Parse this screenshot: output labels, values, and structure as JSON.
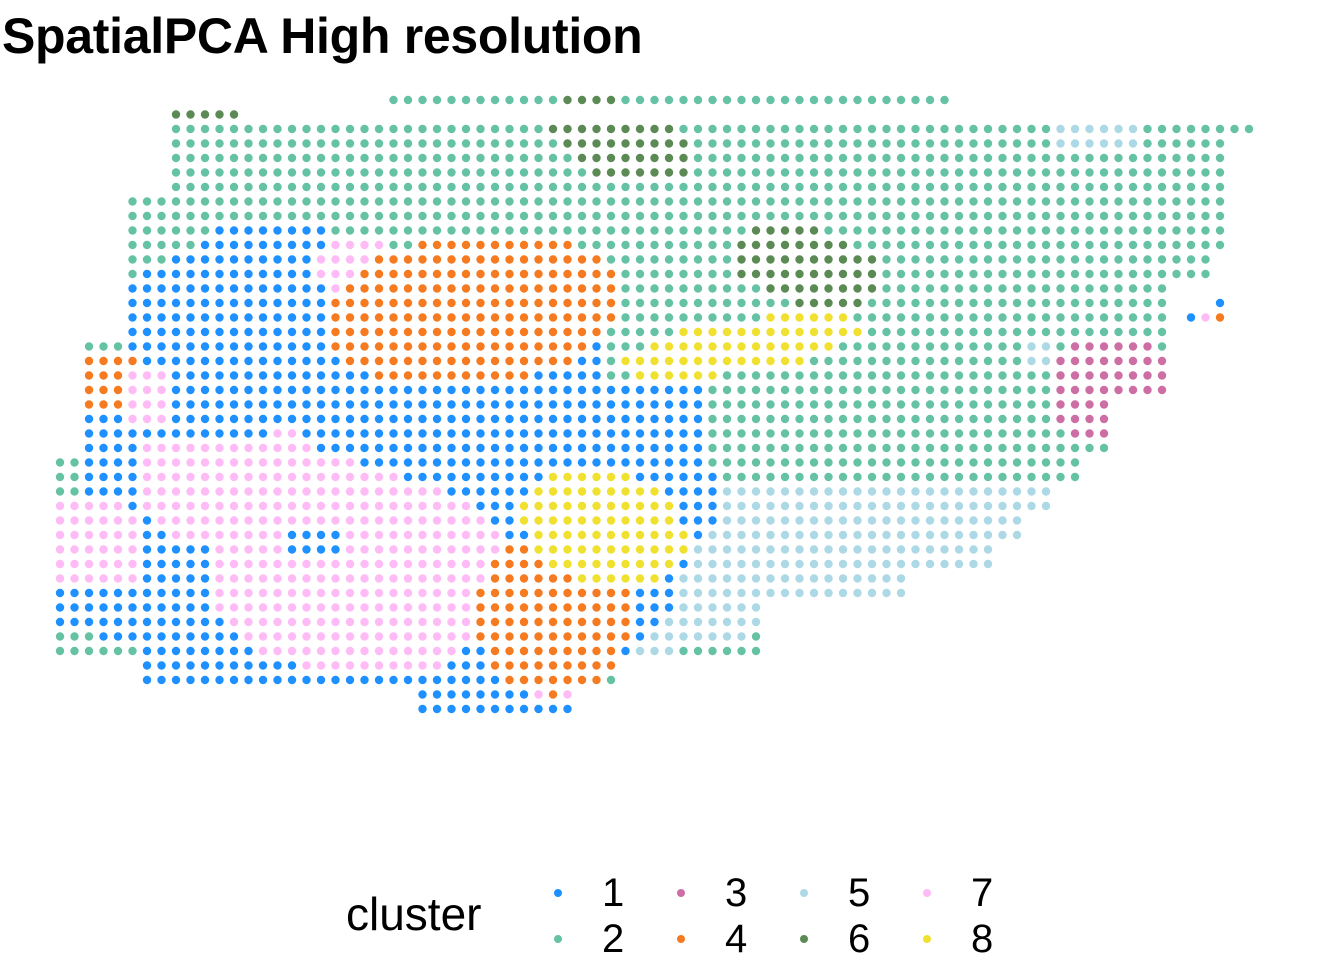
{
  "chart_data": {
    "type": "scatter",
    "title": "SpatialPCA High resolution",
    "xlabel": "",
    "ylabel": "",
    "grid": false,
    "axes_visible": false,
    "legend": {
      "title": "cluster",
      "placement": "bottom",
      "ncol": 4
    },
    "series": [
      {
        "name": "1",
        "color": "#1E90FF"
      },
      {
        "name": "2",
        "color": "#66C2A5"
      },
      {
        "name": "3",
        "color": "#CD6EA4"
      },
      {
        "name": "4",
        "color": "#F57A20"
      },
      {
        "name": "5",
        "color": "#ADD8E6"
      },
      {
        "name": "6",
        "color": "#5C8A55"
      },
      {
        "name": "7",
        "color": "#FFBBF5"
      },
      {
        "name": "8",
        "color": "#F0E131"
      }
    ],
    "grid_spec": {
      "columns": 84,
      "rows": 48,
      "marker": "filled circle"
    },
    "regions": {
      "outline": [
        {
          "y": 0,
          "x0": 23,
          "x1": 61
        },
        {
          "y": 1,
          "x0": 8,
          "x1": 12
        },
        {
          "y": 2,
          "x0": 8,
          "x1": 82
        },
        {
          "y": 3,
          "x0": 8,
          "x1": 80
        },
        {
          "y": 7,
          "x0": 5,
          "x1": 80
        },
        {
          "y": 11,
          "x0": 5,
          "x1": 79
        },
        {
          "y": 13,
          "x0": 5,
          "x1": 76
        },
        {
          "y": 17,
          "x0": 2,
          "x1": 76
        },
        {
          "y": 21,
          "x0": 2,
          "x1": 72
        },
        {
          "y": 25,
          "x0": 0,
          "x1": 70
        },
        {
          "y": 27,
          "x0": 0,
          "x1": 68
        },
        {
          "y": 29,
          "x0": 0,
          "x1": 66
        },
        {
          "y": 31,
          "x0": 0,
          "x1": 64
        },
        {
          "y": 33,
          "x0": 0,
          "x1": 58
        },
        {
          "y": 35,
          "x0": 0,
          "x1": 48
        },
        {
          "y": 37,
          "x0": 0,
          "x1": 48
        },
        {
          "y": 39,
          "x0": 6,
          "x1": 38
        },
        {
          "y": 41,
          "x0": 25,
          "x1": 35
        },
        {
          "y": 42,
          "x0": 25,
          "x1": 35
        }
      ],
      "patches": [
        {
          "cluster": "6",
          "type": "rect",
          "x0": 8,
          "x1": 12,
          "y0": 1,
          "y1": 1
        },
        {
          "cluster": "6",
          "type": "ellipse",
          "cx": 38.5,
          "cy": 2.8,
          "rx": 5.5,
          "ry": 2.6,
          "tilt": 0.35
        },
        {
          "cluster": "6",
          "type": "ellipse",
          "cx": 51.5,
          "cy": 11.5,
          "rx": 5.5,
          "ry": 2.6,
          "tilt": 0.25
        },
        {
          "cluster": "5",
          "type": "ellipse",
          "cx": 71.5,
          "cy": 2.2,
          "rx": 3.5,
          "ry": 1.6,
          "tilt": 0
        },
        {
          "cluster": "5",
          "type": "poly",
          "pts": [
            [
              45,
              27
            ],
            [
              70,
              27
            ],
            [
              70,
              32
            ],
            [
              64,
              33
            ],
            [
              56,
              36
            ],
            [
              46,
              38
            ],
            [
              40,
              39
            ],
            [
              40,
              34
            ],
            [
              44,
              31
            ]
          ]
        },
        {
          "cluster": "1",
          "type": "poly",
          "pts": [
            [
              5,
              13
            ],
            [
              9,
              11
            ],
            [
              12,
              9
            ],
            [
              17,
              9
            ],
            [
              24,
              11
            ],
            [
              30,
              12
            ],
            [
              36,
              14
            ],
            [
              38,
              16
            ],
            [
              38,
              20
            ],
            [
              45,
              20
            ],
            [
              45,
              23
            ],
            [
              46,
              29
            ],
            [
              44,
              32
            ],
            [
              42,
              37
            ],
            [
              36,
              41
            ],
            [
              36,
              43
            ],
            [
              25,
              43
            ],
            [
              24,
              42
            ],
            [
              20,
              42
            ],
            [
              6,
              42
            ],
            [
              6,
              38
            ],
            [
              0,
              37
            ],
            [
              0,
              33
            ],
            [
              2,
              30
            ],
            [
              2,
              21
            ],
            [
              5,
              18
            ]
          ]
        },
        {
          "cluster": "7",
          "type": "ellipse",
          "cx": 20.5,
          "cy": 11.5,
          "rx": 2.8,
          "ry": 2.2,
          "tilt": 0
        },
        {
          "cluster": "4",
          "type": "ellipse",
          "cx": 28.5,
          "cy": 14.5,
          "rx": 10.5,
          "ry": 5.2,
          "tilt": -0.12
        },
        {
          "cluster": "4",
          "type": "rect",
          "x0": 2,
          "x1": 5,
          "y0": 18,
          "y1": 21
        },
        {
          "cluster": "7",
          "type": "rect",
          "x0": 5,
          "x1": 7,
          "y0": 19,
          "y1": 22
        },
        {
          "cluster": "7",
          "type": "poly",
          "pts": [
            [
              6,
              24
            ],
            [
              14,
              24
            ],
            [
              17,
              23
            ],
            [
              19,
              25
            ],
            [
              26,
              27
            ],
            [
              30,
              29
            ],
            [
              32,
              33
            ],
            [
              31,
              37
            ],
            [
              26,
              40
            ],
            [
              20,
              40
            ],
            [
              15,
              39
            ],
            [
              10,
              35
            ],
            [
              8,
              30
            ],
            [
              4,
              28
            ],
            [
              0,
              28
            ],
            [
              0,
              34
            ],
            [
              6,
              34
            ],
            [
              6,
              31
            ]
          ]
        },
        {
          "cluster": "1",
          "type": "rect",
          "x0": 16,
          "x1": 19,
          "y0": 30,
          "y1": 31
        },
        {
          "cluster": "1",
          "type": "ellipse",
          "cx": 8.5,
          "cy": 32.5,
          "rx": 2.5,
          "ry": 2.0,
          "tilt": 0
        },
        {
          "cluster": "7",
          "type": "rect",
          "x0": 33,
          "x1": 35,
          "y0": 35,
          "y1": 41
        },
        {
          "cluster": "4",
          "type": "ellipse",
          "cx": 34.0,
          "cy": 35.5,
          "rx": 5.5,
          "ry": 5.5,
          "tilt": 0
        },
        {
          "cluster": "8",
          "type": "ellipse",
          "cx": 47.0,
          "cy": 17.0,
          "rx": 8.5,
          "ry": 1.8,
          "tilt": -0.15
        },
        {
          "cluster": "8",
          "type": "ellipse",
          "cx": 37.5,
          "cy": 29.5,
          "rx": 6.0,
          "ry": 4.0,
          "tilt": 0.35
        },
        {
          "cluster": "3",
          "type": "ellipse",
          "cx": 72.5,
          "cy": 20.0,
          "rx": 4.2,
          "ry": 4.0,
          "tilt": 0
        },
        {
          "cluster": "5",
          "type": "ellipse",
          "cx": 67.5,
          "cy": 17.5,
          "rx": 1.5,
          "ry": 1.0,
          "tilt": 0
        }
      ],
      "singles": [
        {
          "cluster": "1",
          "x": 80,
          "y": 14
        },
        {
          "cluster": "1",
          "x": 78,
          "y": 15
        },
        {
          "cluster": "7",
          "x": 79,
          "y": 15
        },
        {
          "cluster": "4",
          "x": 80,
          "y": 15
        }
      ]
    }
  }
}
